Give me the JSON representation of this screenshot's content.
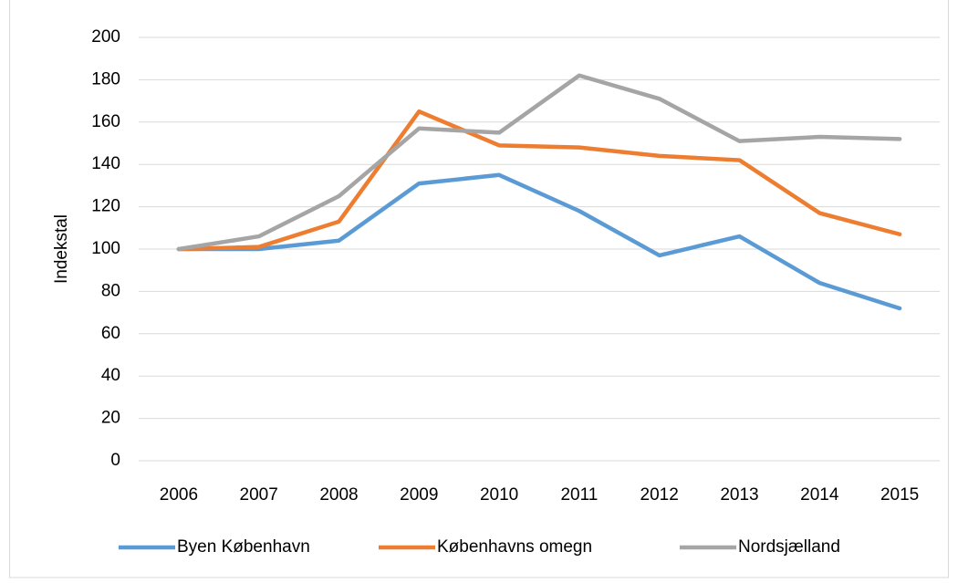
{
  "chart_data": {
    "type": "line",
    "y_label": "Indekstal",
    "categories": [
      "2006",
      "2007",
      "2008",
      "2009",
      "2010",
      "2011",
      "2012",
      "2013",
      "2014",
      "2015"
    ],
    "series": [
      {
        "name": "Byen København",
        "color": "#5b9bd5",
        "values": [
          100,
          100,
          104,
          131,
          135,
          118,
          97,
          106,
          84,
          72
        ]
      },
      {
        "name": "Københavns omegn",
        "color": "#ed7d31",
        "values": [
          100,
          101,
          113,
          165,
          149,
          148,
          144,
          142,
          117,
          107
        ]
      },
      {
        "name": "Nordsjælland",
        "color": "#a5a5a5",
        "values": [
          100,
          106,
          125,
          157,
          155,
          182,
          171,
          151,
          153,
          152
        ]
      }
    ],
    "ylim": [
      0,
      200
    ],
    "yticks": [
      0,
      20,
      40,
      60,
      80,
      100,
      120,
      140,
      160,
      180,
      200
    ],
    "grid": true,
    "legend": "bottom"
  }
}
